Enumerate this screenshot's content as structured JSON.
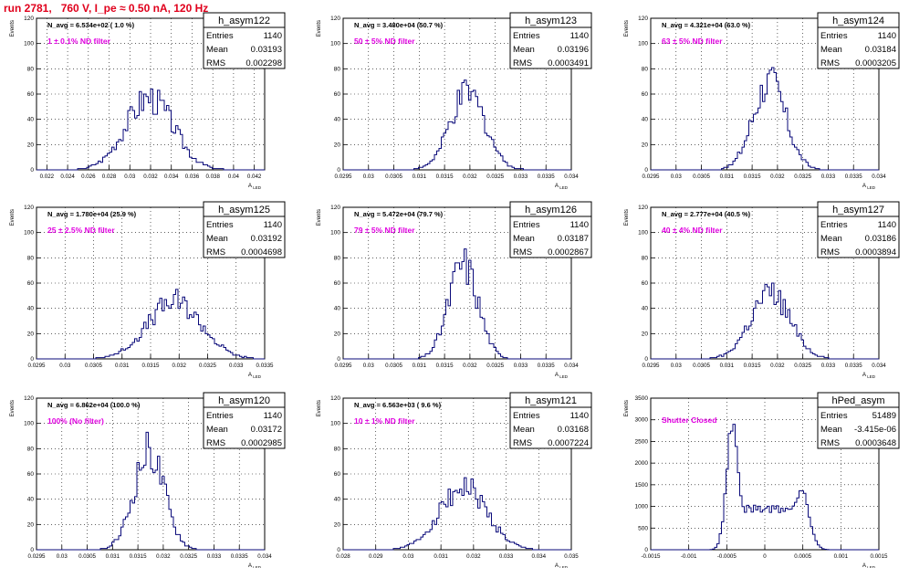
{
  "page": {
    "title": "run 2781,   760 V, I_pe ≈ 0.50 nA, 120 Hz"
  },
  "colors": {
    "hist_line": "#0a0a7a",
    "annotation": "#e000e0",
    "title_red": "#e0001c",
    "axis": "#000000",
    "grid": "#000000"
  },
  "chart_data": [
    {
      "type": "bar",
      "name": "h_asym122",
      "ylabel": "Events",
      "xlabel": "A_LED",
      "ylim": [
        0,
        120
      ],
      "y_ticks": [
        0,
        20,
        40,
        60,
        80,
        100,
        120
      ],
      "xlim": [
        0.021,
        0.043
      ],
      "x_ticks": [
        "0.022",
        "0.024",
        "0.026",
        "0.028",
        "0.03",
        "0.032",
        "0.034",
        "0.036",
        "0.038",
        "0.04",
        "0.042"
      ],
      "x_tick_values": [
        0.022,
        0.024,
        0.026,
        0.028,
        0.03,
        0.032,
        0.034,
        0.036,
        0.038,
        0.04,
        0.042
      ],
      "n_avg_label": "N_avg = 6.534e+02 ( 1.0 %)",
      "annotation": "1 ± 0.1% ND filter",
      "stats": {
        "entries": "1140",
        "mean": "0.03193",
        "rms": "0.002298"
      },
      "peak_center": 0.0319,
      "peak_sigma": 0.0023,
      "peak_height": 57
    },
    {
      "type": "bar",
      "name": "h_asym123",
      "ylabel": "Events",
      "xlabel": "A_LED",
      "ylim": [
        0,
        120
      ],
      "y_ticks": [
        0,
        20,
        40,
        60,
        80,
        100,
        120
      ],
      "xlim": [
        0.0295,
        0.034
      ],
      "x_ticks": [
        "0.0295",
        "0.03",
        "0.0305",
        "0.031",
        "0.0315",
        "0.032",
        "0.0325",
        "0.033",
        "0.0335",
        "0.034"
      ],
      "x_tick_values": [
        0.0295,
        0.03,
        0.0305,
        0.031,
        0.0315,
        0.032,
        0.0325,
        0.033,
        0.0335,
        0.034
      ],
      "n_avg_label": "N_avg = 3.480e+04 (50.7 %)",
      "annotation": "50 ± 5% ND filter",
      "stats": {
        "entries": "1140",
        "mean": "0.03196",
        "rms": "0.0003491"
      },
      "peak_center": 0.03196,
      "peak_sigma": 0.00035,
      "peak_height": 60
    },
    {
      "type": "bar",
      "name": "h_asym124",
      "ylabel": "Events",
      "xlabel": "A_LED",
      "ylim": [
        0,
        120
      ],
      "y_ticks": [
        0,
        20,
        40,
        60,
        80,
        100,
        120
      ],
      "xlim": [
        0.0295,
        0.034
      ],
      "x_ticks": [
        "0.0295",
        "0.03",
        "0.0305",
        "0.031",
        "0.0315",
        "0.032",
        "0.0325",
        "0.033",
        "0.0335",
        "0.034"
      ],
      "x_tick_values": [
        0.0295,
        0.03,
        0.0305,
        0.031,
        0.0315,
        0.032,
        0.0325,
        0.033,
        0.0335,
        0.034
      ],
      "n_avg_label": "N_avg = 4.321e+04 (63.0 %)",
      "annotation": "63 ± 5% ND filter",
      "stats": {
        "entries": "1140",
        "mean": "0.03184",
        "rms": "0.0003205"
      },
      "peak_center": 0.03184,
      "peak_sigma": 0.00032,
      "peak_height": 70
    },
    {
      "type": "bar",
      "name": "h_asym125",
      "ylabel": "Events",
      "xlabel": "A_LED",
      "ylim": [
        0,
        120
      ],
      "y_ticks": [
        0,
        20,
        40,
        60,
        80,
        100,
        120
      ],
      "xlim": [
        0.0295,
        0.0335
      ],
      "x_ticks": [
        "0.0295",
        "0.03",
        "0.0305",
        "0.031",
        "0.0315",
        "0.032",
        "0.0325",
        "0.033",
        "0.0335"
      ],
      "x_tick_values": [
        0.0295,
        0.03,
        0.0305,
        0.031,
        0.0315,
        0.032,
        0.0325,
        0.033,
        0.0335
      ],
      "n_avg_label": "N_avg = 1.780e+04 (25.9 %)",
      "annotation": "25 ± 2.5% ND filter",
      "stats": {
        "entries": "1140",
        "mean": "0.03192",
        "rms": "0.0004698"
      },
      "peak_center": 0.03192,
      "peak_sigma": 0.00047,
      "peak_height": 45
    },
    {
      "type": "bar",
      "name": "h_asym126",
      "ylabel": "Events",
      "xlabel": "A_LED",
      "ylim": [
        0,
        120
      ],
      "y_ticks": [
        0,
        20,
        40,
        60,
        80,
        100,
        120
      ],
      "xlim": [
        0.0295,
        0.034
      ],
      "x_ticks": [
        "0.0295",
        "0.03",
        "0.0305",
        "0.031",
        "0.0315",
        "0.032",
        "0.0325",
        "0.033",
        "0.0335",
        "0.034"
      ],
      "x_tick_values": [
        0.0295,
        0.03,
        0.0305,
        0.031,
        0.0315,
        0.032,
        0.0325,
        0.033,
        0.0335,
        0.034
      ],
      "n_avg_label": "N_avg = 5.472e+04 (79.7 %)",
      "annotation": "79 ± 5% ND filter",
      "stats": {
        "entries": "1140",
        "mean": "0.03187",
        "rms": "0.0002867"
      },
      "peak_center": 0.03187,
      "peak_sigma": 0.00029,
      "peak_height": 75
    },
    {
      "type": "bar",
      "name": "h_asym127",
      "ylabel": "Events",
      "xlabel": "A_LED",
      "ylim": [
        0,
        120
      ],
      "y_ticks": [
        0,
        20,
        40,
        60,
        80,
        100,
        120
      ],
      "xlim": [
        0.0295,
        0.034
      ],
      "x_ticks": [
        "0.0295",
        "0.03",
        "0.0305",
        "0.031",
        "0.0315",
        "0.032",
        "0.0325",
        "0.033",
        "0.0335",
        "0.034"
      ],
      "x_tick_values": [
        0.0295,
        0.03,
        0.0305,
        0.031,
        0.0315,
        0.032,
        0.0325,
        0.033,
        0.0335,
        0.034
      ],
      "n_avg_label": "N_avg = 2.777e+04 (40.5 %)",
      "annotation": "40 ± 4% ND filter",
      "stats": {
        "entries": "1140",
        "mean": "0.03186",
        "rms": "0.0003894"
      },
      "peak_center": 0.03186,
      "peak_sigma": 0.00039,
      "peak_height": 52
    },
    {
      "type": "bar",
      "name": "h_asym120",
      "ylabel": "Events",
      "xlabel": "A_LED",
      "ylim": [
        0,
        120
      ],
      "y_ticks": [
        0,
        20,
        40,
        60,
        80,
        100,
        120
      ],
      "xlim": [
        0.0295,
        0.034
      ],
      "x_ticks": [
        "0.0295",
        "0.03",
        "0.0305",
        "0.031",
        "0.0315",
        "0.032",
        "0.0325",
        "0.033",
        "0.0335",
        "0.034"
      ],
      "x_tick_values": [
        0.0295,
        0.03,
        0.0305,
        0.031,
        0.0315,
        0.032,
        0.0325,
        0.033,
        0.0335,
        0.034
      ],
      "n_avg_label": "N_avg = 6.862e+04 (100.0 %)",
      "annotation": "100% (No filter)",
      "stats": {
        "entries": "1140",
        "mean": "0.03172",
        "rms": "0.0002985"
      },
      "peak_center": 0.03172,
      "peak_sigma": 0.0003,
      "peak_height": 78
    },
    {
      "type": "bar",
      "name": "h_asym121",
      "ylabel": "Events",
      "xlabel": "A_LED",
      "ylim": [
        0,
        120
      ],
      "y_ticks": [
        0,
        20,
        40,
        60,
        80,
        100,
        120
      ],
      "xlim": [
        0.028,
        0.035
      ],
      "x_ticks": [
        "0.028",
        "0.029",
        "0.03",
        "0.031",
        "0.032",
        "0.033",
        "0.034",
        "0.035"
      ],
      "x_tick_values": [
        0.028,
        0.029,
        0.03,
        0.031,
        0.032,
        0.033,
        0.034,
        0.035
      ],
      "n_avg_label": "N_avg = 6.563e+03 ( 9.6 %)",
      "annotation": "10 ± 1% ND filter",
      "stats": {
        "entries": "1140",
        "mean": "0.03168",
        "rms": "0.0007224"
      },
      "peak_center": 0.03168,
      "peak_sigma": 0.00072,
      "peak_height": 50
    },
    {
      "type": "bar",
      "name": "hPed_asym",
      "ylabel": "Events",
      "xlabel": "A_LED",
      "ylim": [
        0,
        3500
      ],
      "y_ticks": [
        0,
        500,
        1000,
        1500,
        2000,
        2500,
        3000,
        3500
      ],
      "xlim": [
        -0.0015,
        0.0015
      ],
      "x_ticks": [
        "-0.0015",
        "-0.001",
        "-0.0005",
        "0",
        "0.0005",
        "0.001",
        "0.0015"
      ],
      "x_tick_values": [
        -0.0015,
        -0.001,
        -0.0005,
        0,
        0.0005,
        0.001,
        0.0015
      ],
      "n_avg_label": "",
      "annotation": "Shutter Closed",
      "stats": {
        "entries": "51489",
        "mean": "-3.415e-06",
        "rms": "0.0003648"
      },
      "bimodal": true
    }
  ],
  "stats_labels": {
    "entries": "Entries",
    "mean": "Mean",
    "rms": "RMS"
  }
}
